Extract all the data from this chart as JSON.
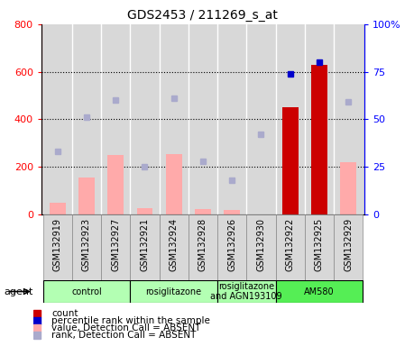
{
  "title": "GDS2453 / 211269_s_at",
  "samples": [
    "GSM132919",
    "GSM132923",
    "GSM132927",
    "GSM132921",
    "GSM132924",
    "GSM132928",
    "GSM132926",
    "GSM132930",
    "GSM132922",
    "GSM132925",
    "GSM132929"
  ],
  "count_values": [
    null,
    null,
    null,
    null,
    null,
    null,
    null,
    null,
    450,
    630,
    null
  ],
  "count_absent": [
    50,
    155,
    250,
    28,
    255,
    22,
    20,
    null,
    null,
    null,
    220
  ],
  "rank_values_pct": [
    null,
    null,
    null,
    null,
    null,
    null,
    null,
    null,
    74,
    80,
    null
  ],
  "rank_absent_pct": [
    33,
    51,
    60,
    25,
    61,
    28,
    18,
    42,
    null,
    null,
    59
  ],
  "ylim_left": [
    0,
    800
  ],
  "ylim_right": [
    0,
    100
  ],
  "yticks_left": [
    0,
    200,
    400,
    600,
    800
  ],
  "yticks_right": [
    0,
    25,
    50,
    75,
    100
  ],
  "agent_groups": [
    {
      "label": "control",
      "start": 0,
      "end": 3,
      "color": "#b3ffb3"
    },
    {
      "label": "rosiglitazone",
      "start": 3,
      "end": 6,
      "color": "#b3ffb3"
    },
    {
      "label": "rosiglitazone\nand AGN193109",
      "start": 6,
      "end": 8,
      "color": "#aaffaa"
    },
    {
      "label": "AM580",
      "start": 8,
      "end": 11,
      "color": "#55ee55"
    }
  ],
  "legend_items": [
    {
      "label": "count",
      "color": "#cc0000"
    },
    {
      "label": "percentile rank within the sample",
      "color": "#0000cc"
    },
    {
      "label": "value, Detection Call = ABSENT",
      "color": "#ffaaaa"
    },
    {
      "label": "rank, Detection Call = ABSENT",
      "color": "#aaaacc"
    }
  ],
  "bar_width": 0.55,
  "count_color": "#cc0000",
  "count_absent_color": "#ffaaaa",
  "rank_color": "#0000cc",
  "rank_absent_color": "#aaaacc",
  "bg_color": "#d8d8d8",
  "vline_color": "#ffffff"
}
